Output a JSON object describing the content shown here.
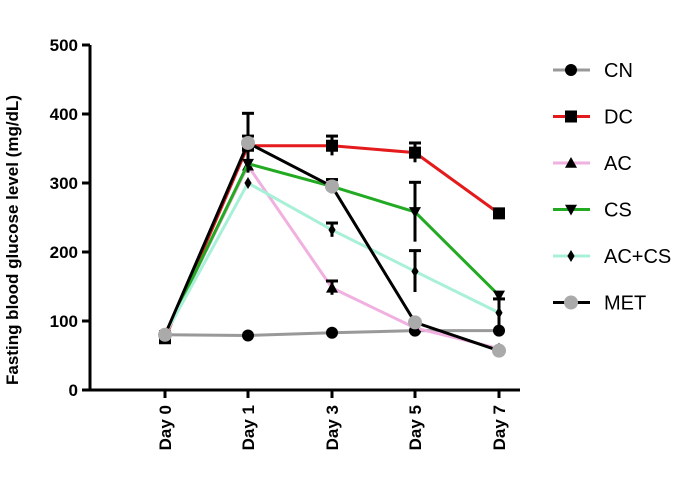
{
  "chart_data": {
    "type": "line",
    "title": "",
    "xlabel": "",
    "ylabel": "Fasting blood glucose level (mg/dL)",
    "categories": [
      "Day 0",
      "Day 1",
      "Day 3",
      "Day 5",
      "Day 7"
    ],
    "ylim": [
      0,
      500
    ],
    "yticks": [
      0,
      100,
      200,
      300,
      400,
      500
    ],
    "grid": false,
    "legend_position": "right",
    "series": [
      {
        "name": "CN",
        "color": "#999999",
        "marker": "circle",
        "values": [
          80,
          79,
          83,
          86,
          86
        ],
        "errors": [
          0,
          0,
          0,
          0,
          0
        ]
      },
      {
        "name": "DC",
        "color": "#e41a1c",
        "marker": "square",
        "values": [
          75,
          354,
          354,
          344,
          256
        ],
        "errors": [
          0,
          14,
          14,
          14,
          0
        ]
      },
      {
        "name": "AC",
        "color": "#f0b0e0",
        "marker": "triangle-up",
        "values": [
          80,
          325,
          148,
          90,
          60
        ],
        "errors": [
          0,
          0,
          10,
          0,
          0
        ]
      },
      {
        "name": "CS",
        "color": "#22aa22",
        "marker": "triangle-down",
        "values": [
          80,
          328,
          295,
          258,
          137
        ],
        "errors": [
          0,
          0,
          0,
          43,
          0
        ]
      },
      {
        "name": "AC+CS",
        "color": "#a8f0d8",
        "marker": "diamond",
        "values": [
          80,
          300,
          232,
          172,
          112
        ],
        "errors": [
          0,
          0,
          10,
          30,
          20
        ]
      },
      {
        "name": "MET",
        "color": "#000000",
        "marker": "circle-gray",
        "values": [
          80,
          358,
          295,
          98,
          57
        ],
        "errors": [
          0,
          43,
          10,
          0,
          0
        ]
      }
    ]
  }
}
